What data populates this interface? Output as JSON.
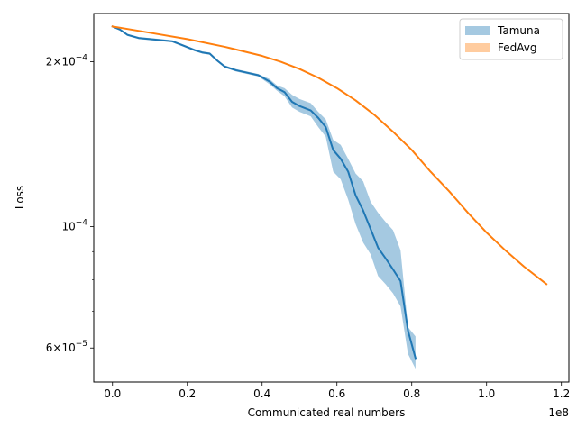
{
  "chart_data": {
    "type": "line",
    "xlabel": "Communicated real numbers",
    "ylabel": "Loss",
    "x_offset_label": "1e8",
    "xlim": [
      -5000000,
      122000000
    ],
    "ylim": [
      5.2e-05,
      0.000245
    ],
    "yscale": "log",
    "x_ticks": [
      0,
      20000000,
      40000000,
      60000000,
      80000000,
      100000000,
      120000000
    ],
    "x_tick_labels": [
      "0.0",
      "0.2",
      "0.4",
      "0.6",
      "0.8",
      "1.0",
      "1.2"
    ],
    "y_ticks_major": [
      {
        "value": 0.0002,
        "mantissa": "2",
        "exponent": "−4"
      },
      {
        "value": 0.0001,
        "mantissa": "",
        "exponent": "−4"
      },
      {
        "value": 6e-05,
        "mantissa": "6",
        "exponent": "−5"
      }
    ],
    "y_ticks_minor": [
      9e-05,
      8e-05,
      7e-05
    ],
    "legend_position": "top-right",
    "series": [
      {
        "name": "Tamuna",
        "color": "#1f77b4",
        "band_color": "#1f77b4",
        "x": [
          0,
          2000000,
          4000000,
          7000000,
          10000000,
          13000000,
          16000000,
          19000000,
          22000000,
          24000000,
          26000000,
          28000000,
          30000000,
          33000000,
          36000000,
          39000000,
          42000000,
          44000000,
          46000000,
          48000000,
          50000000,
          53000000,
          55000000,
          57000000,
          59000000,
          61000000,
          63000000,
          65000000,
          67000000,
          69000000,
          71000000,
          73000000,
          75000000,
          77000000,
          79000000,
          81000000
        ],
        "y": [
          0.000232,
          0.000229,
          0.000224,
          0.000221,
          0.00022,
          0.000219,
          0.000218,
          0.000214,
          0.00021,
          0.000208,
          0.000207,
          0.000201,
          0.000196,
          0.000193,
          0.000191,
          0.000189,
          0.000184,
          0.000179,
          0.000176,
          0.000169,
          0.000166,
          0.000163,
          0.000158,
          0.000152,
          0.000138,
          0.000133,
          0.000126,
          0.000114,
          0.000107,
          9.9e-05,
          9.15e-05,
          8.75e-05,
          8.35e-05,
          7.95e-05,
          6.45e-05,
          5.75e-05
        ],
        "band_upper": [
          0.000233,
          0.00023,
          0.000225,
          0.000222,
          0.000221,
          0.00022,
          0.000219,
          0.000215,
          0.000211,
          0.000209,
          0.000208,
          0.000202,
          0.000197,
          0.000194,
          0.000192,
          0.00019,
          0.000186,
          0.000181,
          0.000179,
          0.000174,
          0.000171,
          0.000168,
          0.000162,
          0.000157,
          0.000144,
          0.000141,
          0.000133,
          0.000125,
          0.000121,
          0.000111,
          0.000106,
          0.000102,
          9.85e-05,
          9.05e-05,
          6.55e-05,
          6.3e-05
        ],
        "band_lower": [
          0.000231,
          0.000228,
          0.000223,
          0.00022,
          0.000219,
          0.000218,
          0.000217,
          0.000213,
          0.000209,
          0.000207,
          0.000206,
          0.0002,
          0.000195,
          0.000192,
          0.00019,
          0.000188,
          0.000182,
          0.000177,
          0.000173,
          0.000165,
          0.000162,
          0.000159,
          0.000152,
          0.000146,
          0.000126,
          0.000122,
          0.000112,
          0.000101,
          9.35e-05,
          8.9e-05,
          8.12e-05,
          7.85e-05,
          7.55e-05,
          7.15e-05,
          5.85e-05,
          5.5e-05
        ]
      },
      {
        "name": "FedAvg",
        "color": "#ff7f0e",
        "band_color": "#ff7f0e",
        "x": [
          0,
          10000000,
          20000000,
          30000000,
          40000000,
          45000000,
          50000000,
          55000000,
          60000000,
          65000000,
          70000000,
          75000000,
          80000000,
          85000000,
          90000000,
          95000000,
          100000000,
          105000000,
          110000000,
          116000000
        ],
        "y": [
          0.000232,
          0.000226,
          0.00022,
          0.000213,
          0.000205,
          0.0002,
          0.000194,
          0.000187,
          0.000179,
          0.00017,
          0.00016,
          0.000149,
          0.000138,
          0.000126,
          0.000116,
          0.000106,
          9.75e-05,
          9.05e-05,
          8.45e-05,
          7.85e-05
        ]
      }
    ]
  }
}
